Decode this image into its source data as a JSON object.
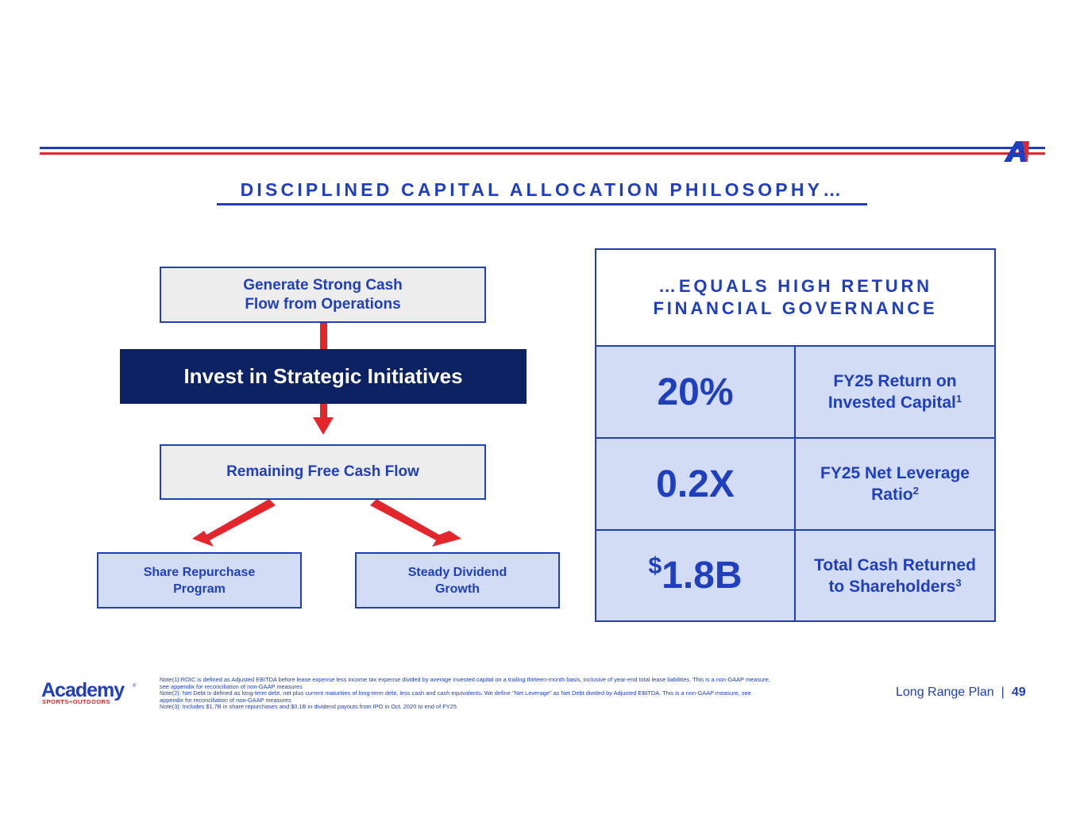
{
  "header": {
    "title": "DISCIPLINED CAPITAL ALLOCATION PHILOSOPHY…"
  },
  "colors": {
    "brand_blue": "#1f3fbf",
    "navy": "#0d2262",
    "accent_red": "#e3262c",
    "box_gray": "#ededed",
    "box_light_blue": "#d3dcf5"
  },
  "flow": {
    "generate": [
      "Generate Strong Cash",
      "Flow from Operations"
    ],
    "invest": "Invest in Strategic Initiatives",
    "remaining": "Remaining Free Cash Flow",
    "share": [
      "Share Repurchase",
      "Program"
    ],
    "dividend": [
      "Steady Dividend",
      "Growth"
    ]
  },
  "metrics": {
    "header": [
      "…EQUALS HIGH RETURN",
      "FINANCIAL GOVERNANCE"
    ],
    "rows": [
      {
        "value": "20%",
        "desc_line1": "FY25 Return on",
        "desc_line2": "Invested Capital",
        "note": "1"
      },
      {
        "value": "0.2X",
        "desc_line1": "FY25 Net Leverage",
        "desc_line2": "Ratio",
        "note": "2"
      },
      {
        "currency": "$",
        "value": "1.8B",
        "desc_line1": "Total Cash Returned",
        "desc_line2": "to Shareholders",
        "note": "3"
      }
    ]
  },
  "footer": {
    "brand_name": "Academy",
    "brand_sub": "SPORTS+OUTDOORS",
    "brand_reg": "®",
    "notes": [
      "Note(1):ROIC is defined as Adjusted EBITDA before lease expense less income tax expense divided by average invested capital on a trailing thirteen-month basis, inclusive of year-end total lease liabilities. This is a non-GAAP measure,",
      "see appendix for reconciliation of non-GAAP measures",
      "Note(2): Net Debt is defined as long-term debt, net plus current maturities of long-term debt, less cash and cash equivalents. We define \"Net Leverage\" as Net Debt divided by Adjusted EBITDA. This is a non-GAAP measure, see",
      "appendix for reconciliation of non-GAAP measures",
      "Note(3): Includes $1.7B in share repurchases and $0.1B in dividend payouts from IPO in Oct. 2020 to end of FY25."
    ],
    "deck_name": "Long Range Plan",
    "separator": "|",
    "page_number": "49"
  }
}
